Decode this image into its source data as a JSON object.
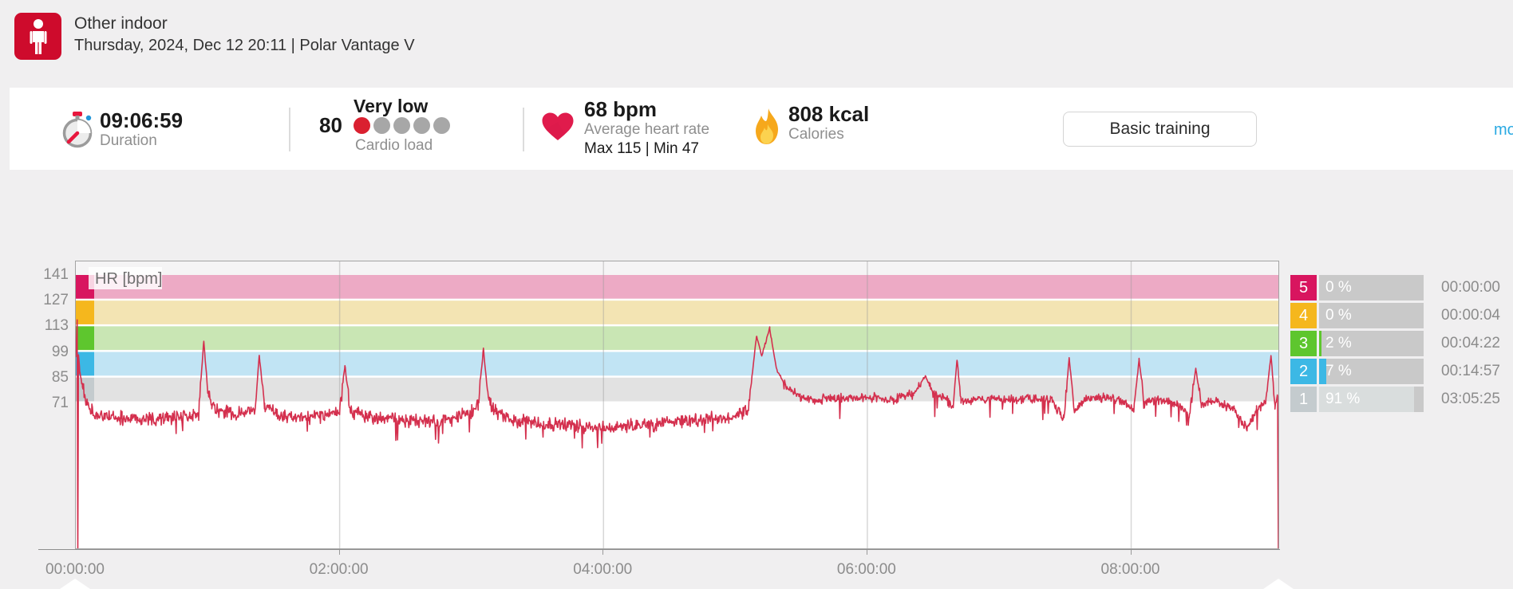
{
  "header": {
    "title": "Other indoor",
    "subtitle": "Thursday, 2024, Dec 12 20:11  |  Polar Vantage V",
    "sport_icon_color": "#ce0b2c"
  },
  "stats": {
    "duration": {
      "value": "09:06:59",
      "label": "Duration"
    },
    "cardio_load": {
      "value": "80",
      "status": "Very low",
      "label": "Cardio load",
      "dots_total": 5,
      "dots_active": 1,
      "active_color": "#da2030",
      "inactive_color": "#a7a7a7"
    },
    "heart_rate": {
      "value": "68 bpm",
      "label": "Average heart rate",
      "minmax": "Max 115  |  Min 47"
    },
    "calories": {
      "value": "808 kcal",
      "label": "Calories"
    },
    "training_benefit_label": "Basic training",
    "more_link": "mo"
  },
  "chart_data": {
    "type": "line",
    "title": "HR [bpm]",
    "legend": "HR [bpm]",
    "line_color": "#d4304e",
    "x_range_hours": [
      0,
      9.116
    ],
    "x_ticks": [
      {
        "label": "00:00:00",
        "hour": 0
      },
      {
        "label": "02:00:00",
        "hour": 2
      },
      {
        "label": "04:00:00",
        "hour": 4
      },
      {
        "label": "06:00:00",
        "hour": 6
      },
      {
        "label": "08:00:00",
        "hour": 8
      }
    ],
    "y_ticks": [
      141,
      127,
      113,
      99,
      85,
      71
    ],
    "y_top_bpm": 141,
    "zones": [
      {
        "zone": 5,
        "from": 127,
        "to": 141,
        "band_color": "#edaac5",
        "tab_color": "#d8155f"
      },
      {
        "zone": 4,
        "from": 113,
        "to": 127,
        "band_color": "#f3e4b3",
        "tab_color": "#f5b71d"
      },
      {
        "zone": 3,
        "from": 99,
        "to": 113,
        "band_color": "#c9e6b4",
        "tab_color": "#5ec62e"
      },
      {
        "zone": 2,
        "from": 85,
        "to": 99,
        "band_color": "#c1e4f4",
        "tab_color": "#3cb8e5"
      },
      {
        "zone": 1,
        "from": 71,
        "to": 85,
        "band_color": "#e2e2e2",
        "tab_color": "#c4cbce"
      }
    ],
    "hr_keypoints": [
      [
        0.0,
        96
      ],
      [
        0.01,
        116
      ],
      [
        0.015,
        -15
      ],
      [
        0.02,
        98
      ],
      [
        0.03,
        88
      ],
      [
        0.05,
        80
      ],
      [
        0.08,
        72
      ],
      [
        0.12,
        67
      ],
      [
        0.2,
        64
      ],
      [
        0.35,
        63
      ],
      [
        0.5,
        62
      ],
      [
        0.65,
        63
      ],
      [
        0.8,
        64
      ],
      [
        0.93,
        65
      ],
      [
        0.97,
        105
      ],
      [
        1.0,
        78
      ],
      [
        1.03,
        70
      ],
      [
        1.1,
        67
      ],
      [
        1.25,
        65
      ],
      [
        1.36,
        67
      ],
      [
        1.39,
        97
      ],
      [
        1.43,
        70
      ],
      [
        1.55,
        64
      ],
      [
        1.7,
        63
      ],
      [
        1.85,
        64
      ],
      [
        2.0,
        65
      ],
      [
        2.04,
        92
      ],
      [
        2.08,
        67
      ],
      [
        2.25,
        63
      ],
      [
        2.45,
        62
      ],
      [
        2.65,
        61
      ],
      [
        2.85,
        62
      ],
      [
        3.0,
        66
      ],
      [
        3.05,
        70
      ],
      [
        3.09,
        101
      ],
      [
        3.12,
        78
      ],
      [
        3.15,
        68
      ],
      [
        3.3,
        62
      ],
      [
        3.5,
        60
      ],
      [
        3.7,
        59
      ],
      [
        3.95,
        58
      ],
      [
        4.2,
        59
      ],
      [
        4.45,
        60
      ],
      [
        4.7,
        62
      ],
      [
        4.95,
        63
      ],
      [
        5.1,
        68
      ],
      [
        5.16,
        108
      ],
      [
        5.2,
        97
      ],
      [
        5.26,
        112
      ],
      [
        5.31,
        90
      ],
      [
        5.38,
        80
      ],
      [
        5.48,
        75
      ],
      [
        5.6,
        73
      ],
      [
        5.75,
        74
      ],
      [
        5.9,
        73
      ],
      [
        6.05,
        74
      ],
      [
        6.2,
        73
      ],
      [
        6.35,
        76
      ],
      [
        6.44,
        86
      ],
      [
        6.5,
        76
      ],
      [
        6.6,
        73
      ],
      [
        6.65,
        68
      ],
      [
        6.68,
        95
      ],
      [
        6.71,
        72
      ],
      [
        6.8,
        73
      ],
      [
        6.95,
        74
      ],
      [
        7.1,
        73
      ],
      [
        7.25,
        74
      ],
      [
        7.4,
        73
      ],
      [
        7.49,
        62
      ],
      [
        7.53,
        96
      ],
      [
        7.57,
        66
      ],
      [
        7.65,
        73
      ],
      [
        7.8,
        74
      ],
      [
        7.95,
        72
      ],
      [
        8.02,
        68
      ],
      [
        8.06,
        95
      ],
      [
        8.1,
        71
      ],
      [
        8.2,
        73
      ],
      [
        8.35,
        71
      ],
      [
        8.44,
        64
      ],
      [
        8.49,
        90
      ],
      [
        8.53,
        71
      ],
      [
        8.65,
        72
      ],
      [
        8.78,
        68
      ],
      [
        8.88,
        57
      ],
      [
        8.95,
        68
      ],
      [
        9.02,
        72
      ],
      [
        9.06,
        97
      ],
      [
        9.09,
        70
      ],
      [
        9.11,
        74
      ],
      [
        9.116,
        -15
      ]
    ],
    "noise": {
      "seed": 42,
      "step_h": 0.0045,
      "amp_keypoints": [
        [
          0,
          4.6
        ],
        [
          5.05,
          4.6
        ],
        [
          5.45,
          3.0
        ],
        [
          9.116,
          3.0
        ]
      ]
    }
  },
  "zone_summary": {
    "rows": [
      {
        "zone": "5",
        "percent": "0 %",
        "pct": 0,
        "time": "00:00:00",
        "color": "#d8155f",
        "fill_color": "#d8155f"
      },
      {
        "zone": "4",
        "percent": "0 %",
        "pct": 0,
        "time": "00:00:04",
        "color": "#f5b71d",
        "fill_color": "#f5b71d"
      },
      {
        "zone": "3",
        "percent": "2 %",
        "pct": 2,
        "time": "00:04:22",
        "color": "#5ec62e",
        "fill_color": "#5ec62e"
      },
      {
        "zone": "2",
        "percent": "7 %",
        "pct": 7,
        "time": "00:14:57",
        "color": "#3cb8e5",
        "fill_color": "#3cb8e5"
      },
      {
        "zone": "1",
        "percent": "91 %",
        "pct": 91,
        "time": "03:05:25",
        "color": "#c4cbce",
        "fill_color": "#d9dddd"
      }
    ]
  }
}
